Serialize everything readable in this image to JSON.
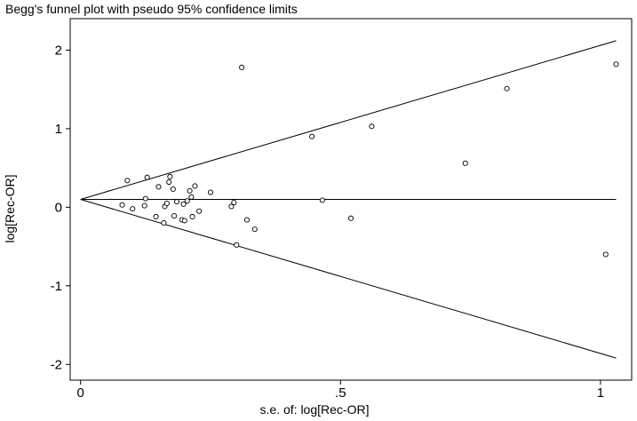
{
  "chart_data": {
    "type": "scatter",
    "title": "Begg's funnel plot with pseudo 95% confidence limits",
    "xlabel": "s.e. of: log[Rec-OR]",
    "ylabel": "log[Rec-OR]",
    "xlim": [
      -0.02,
      1.06
    ],
    "ylim": [
      -2.2,
      2.4
    ],
    "x_ticks": [
      {
        "value": 0,
        "label": "0"
      },
      {
        "value": 0.5,
        "label": ".5"
      },
      {
        "value": 1,
        "label": "1"
      }
    ],
    "y_ticks": [
      {
        "value": 2,
        "label": "2"
      },
      {
        "value": 1,
        "label": "1"
      },
      {
        "value": 0,
        "label": "0"
      },
      {
        "value": -1,
        "label": "-1"
      },
      {
        "value": -2,
        "label": "-2"
      }
    ],
    "pooled_effect": 0.1,
    "ci_multiplier": 1.96,
    "line_x_max": 1.03,
    "points": [
      {
        "x": 0.08,
        "y": 0.03
      },
      {
        "x": 0.09,
        "y": 0.34
      },
      {
        "x": 0.1,
        "y": -0.02
      },
      {
        "x": 0.123,
        "y": 0.02
      },
      {
        "x": 0.125,
        "y": 0.11
      },
      {
        "x": 0.128,
        "y": 0.38
      },
      {
        "x": 0.145,
        "y": -0.12
      },
      {
        "x": 0.15,
        "y": 0.26
      },
      {
        "x": 0.16,
        "y": -0.2
      },
      {
        "x": 0.162,
        "y": 0.01
      },
      {
        "x": 0.166,
        "y": 0.05
      },
      {
        "x": 0.17,
        "y": 0.32
      },
      {
        "x": 0.172,
        "y": 0.39
      },
      {
        "x": 0.178,
        "y": 0.23
      },
      {
        "x": 0.18,
        "y": -0.11
      },
      {
        "x": 0.185,
        "y": 0.07
      },
      {
        "x": 0.195,
        "y": -0.16
      },
      {
        "x": 0.198,
        "y": 0.04
      },
      {
        "x": 0.2,
        "y": -0.17
      },
      {
        "x": 0.205,
        "y": 0.08
      },
      {
        "x": 0.21,
        "y": 0.21
      },
      {
        "x": 0.213,
        "y": 0.13
      },
      {
        "x": 0.215,
        "y": -0.12
      },
      {
        "x": 0.22,
        "y": 0.27
      },
      {
        "x": 0.228,
        "y": -0.05
      },
      {
        "x": 0.25,
        "y": 0.19
      },
      {
        "x": 0.29,
        "y": 0.01
      },
      {
        "x": 0.295,
        "y": 0.06
      },
      {
        "x": 0.3,
        "y": -0.48
      },
      {
        "x": 0.31,
        "y": 1.78
      },
      {
        "x": 0.32,
        "y": -0.16
      },
      {
        "x": 0.335,
        "y": -0.28
      },
      {
        "x": 0.445,
        "y": 0.9
      },
      {
        "x": 0.465,
        "y": 0.09
      },
      {
        "x": 0.52,
        "y": -0.14
      },
      {
        "x": 0.56,
        "y": 1.03
      },
      {
        "x": 0.74,
        "y": 0.56
      },
      {
        "x": 0.82,
        "y": 1.51
      },
      {
        "x": 1.01,
        "y": -0.6
      },
      {
        "x": 1.03,
        "y": 1.82
      }
    ]
  }
}
